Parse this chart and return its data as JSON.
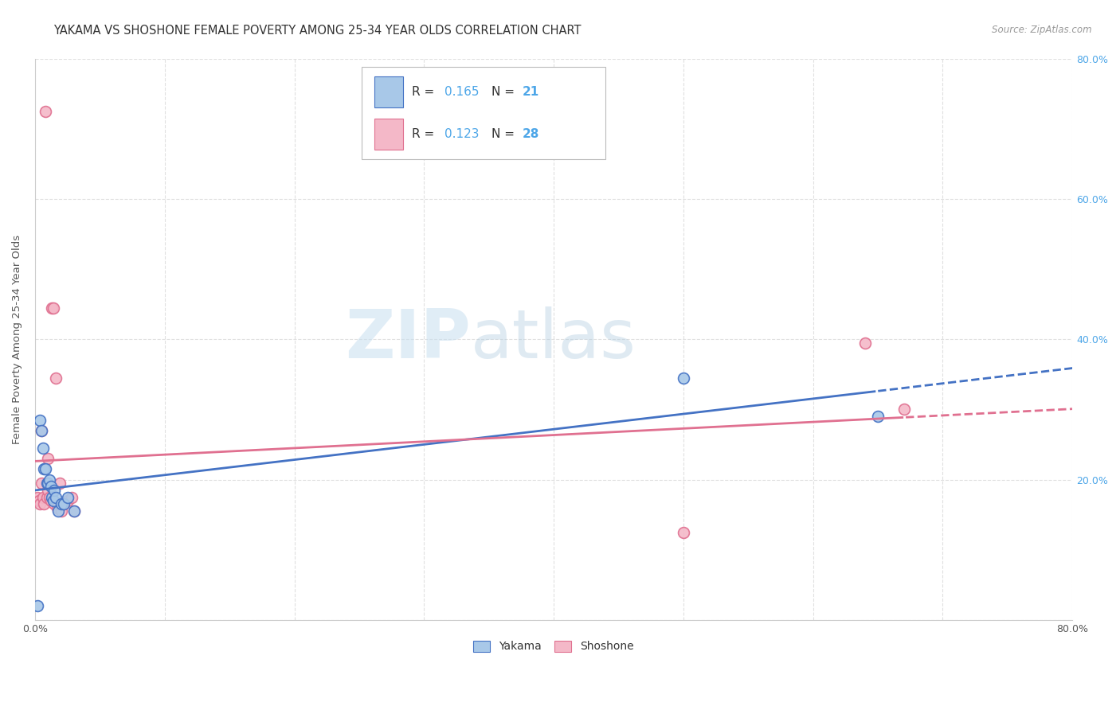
{
  "title": "YAKAMA VS SHOSHONE FEMALE POVERTY AMONG 25-34 YEAR OLDS CORRELATION CHART",
  "source": "Source: ZipAtlas.com",
  "ylabel": "Female Poverty Among 25-34 Year Olds",
  "xlim": [
    0.0,
    0.8
  ],
  "ylim": [
    0.0,
    0.8
  ],
  "xticks": [
    0.0,
    0.1,
    0.2,
    0.3,
    0.4,
    0.5,
    0.6,
    0.7,
    0.8
  ],
  "xtick_labels": [
    "0.0%",
    "",
    "",
    "",
    "",
    "",
    "",
    "",
    "80.0%"
  ],
  "yticks": [
    0.0,
    0.2,
    0.4,
    0.6,
    0.8
  ],
  "ytick_labels_right": [
    "",
    "20.0%",
    "40.0%",
    "60.0%",
    "80.0%"
  ],
  "background_color": "#ffffff",
  "watermark_zip": "ZIP",
  "watermark_atlas": "atlas",
  "legend_R_yakama": "0.165",
  "legend_N_yakama": "21",
  "legend_R_shoshone": "0.123",
  "legend_N_shoshone": "28",
  "yakama_fill": "#a8c8e8",
  "yakama_edge": "#4472c4",
  "shoshone_fill": "#f4b8c8",
  "shoshone_edge": "#e07090",
  "yakama_line_color": "#4472c4",
  "shoshone_line_color": "#e07090",
  "yakama_x": [
    0.002,
    0.004,
    0.005,
    0.006,
    0.007,
    0.008,
    0.009,
    0.01,
    0.011,
    0.012,
    0.013,
    0.014,
    0.015,
    0.016,
    0.018,
    0.02,
    0.022,
    0.025,
    0.03,
    0.5,
    0.65
  ],
  "yakama_y": [
    0.02,
    0.285,
    0.27,
    0.245,
    0.215,
    0.215,
    0.195,
    0.195,
    0.2,
    0.19,
    0.175,
    0.17,
    0.185,
    0.175,
    0.155,
    0.165,
    0.165,
    0.175,
    0.155,
    0.345,
    0.29
  ],
  "shoshone_x": [
    0.002,
    0.003,
    0.004,
    0.005,
    0.005,
    0.006,
    0.007,
    0.008,
    0.009,
    0.01,
    0.01,
    0.011,
    0.012,
    0.013,
    0.014,
    0.015,
    0.016,
    0.017,
    0.018,
    0.019,
    0.02,
    0.022,
    0.025,
    0.028,
    0.03,
    0.5,
    0.64,
    0.67
  ],
  "shoshone_y": [
    0.175,
    0.17,
    0.165,
    0.27,
    0.195,
    0.175,
    0.165,
    0.725,
    0.175,
    0.23,
    0.185,
    0.175,
    0.17,
    0.445,
    0.445,
    0.165,
    0.345,
    0.16,
    0.165,
    0.195,
    0.155,
    0.165,
    0.17,
    0.175,
    0.155,
    0.125,
    0.395,
    0.3
  ],
  "title_fontsize": 10.5,
  "axis_label_fontsize": 9.5,
  "tick_fontsize": 9,
  "legend_fontsize": 11,
  "marker_size": 100,
  "line_width": 2.0,
  "grid_color": "#cccccc",
  "grid_alpha": 0.6
}
